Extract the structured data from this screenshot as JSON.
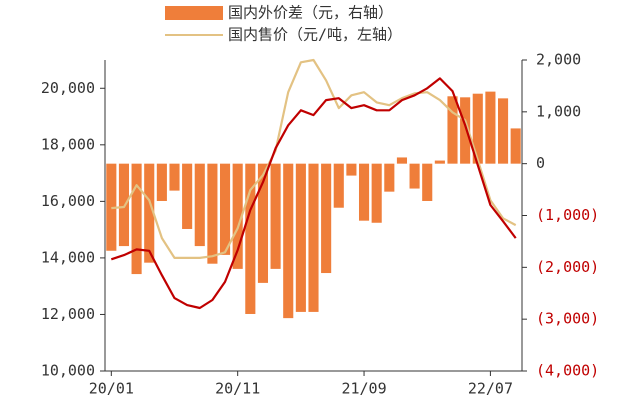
{
  "chart_data": {
    "type": "bar_line",
    "categories": [
      "20/01",
      null,
      null,
      null,
      null,
      null,
      null,
      null,
      null,
      null,
      "20/11",
      null,
      null,
      null,
      null,
      null,
      null,
      null,
      null,
      null,
      "21/09",
      null,
      null,
      null,
      null,
      null,
      null,
      null,
      null,
      null,
      "22/07",
      null,
      null
    ],
    "series": [
      {
        "name": "国内外价差（元，右轴）",
        "type": "bar",
        "axis": "y2",
        "color": "#ef7e3a",
        "values": [
          -1680,
          -1590,
          -2130,
          -1910,
          -720,
          -520,
          -1260,
          -1590,
          -1930,
          -1760,
          -2030,
          -2900,
          -2300,
          -2030,
          -2980,
          -2860,
          -2860,
          -2110,
          -850,
          -230,
          -1100,
          -1140,
          -540,
          120,
          -480,
          -720,
          60,
          1300,
          1280,
          1350,
          1390,
          1260,
          680
        ]
      },
      {
        "name": "国内售价（元/吨，左轴）",
        "type": "line",
        "axis": "y",
        "color": "#e3c283",
        "values": [
          15760,
          15800,
          16570,
          16040,
          14700,
          14000,
          14000,
          14000,
          14060,
          14200,
          15050,
          16400,
          16930,
          17800,
          19860,
          20920,
          21000,
          20280,
          19300,
          19750,
          19860,
          19500,
          19400,
          19650,
          19820,
          19860,
          19580,
          19150,
          18870,
          17460,
          16040,
          15400,
          15160
        ]
      },
      {
        "type": "line",
        "axis": "y",
        "color": "#c00000",
        "values": [
          13950,
          14100,
          14300,
          14250,
          13390,
          12580,
          12330,
          12230,
          12510,
          13150,
          14280,
          15690,
          16680,
          17880,
          18690,
          19220,
          19050,
          19580,
          19650,
          19300,
          19400,
          19220,
          19220,
          19580,
          19750,
          20000,
          20350,
          19900,
          18700,
          17280,
          15870,
          15300,
          14700
        ]
      }
    ],
    "ylim": [
      10000,
      21000
    ],
    "yticks": [
      {
        "value": 10000,
        "label": "10,000"
      },
      {
        "value": 12000,
        "label": "12,000"
      },
      {
        "value": 14000,
        "label": "14,000"
      },
      {
        "value": 16000,
        "label": "16,000"
      },
      {
        "value": 18000,
        "label": "18,000"
      },
      {
        "value": 20000,
        "label": "20,000"
      }
    ],
    "y2lim": [
      -4000,
      2000
    ],
    "y2ticks": [
      {
        "value": 2000,
        "label": "2,000"
      },
      {
        "value": 1000,
        "label": "1,000"
      },
      0,
      {
        "value": -1000,
        "label": "(1,000)"
      },
      {
        "value": -2000,
        "label": "(2,000)"
      },
      {
        "value": -3000,
        "label": "(3,000)"
      },
      {
        "value": -4000,
        "label": "(4,000)"
      }
    ],
    "negative_tick_color": "#c00000",
    "legend": "top"
  }
}
